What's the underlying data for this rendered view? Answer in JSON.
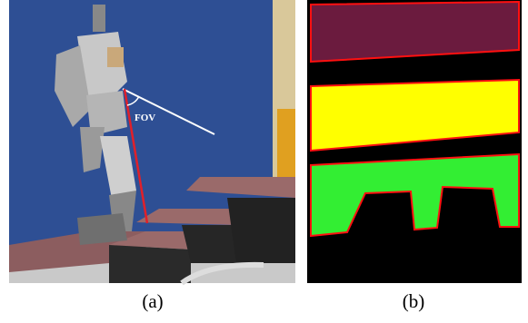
{
  "figure": {
    "panels": [
      {
        "label": "(a)",
        "annotation": "FOV"
      },
      {
        "label": "(b)"
      }
    ]
  }
}
